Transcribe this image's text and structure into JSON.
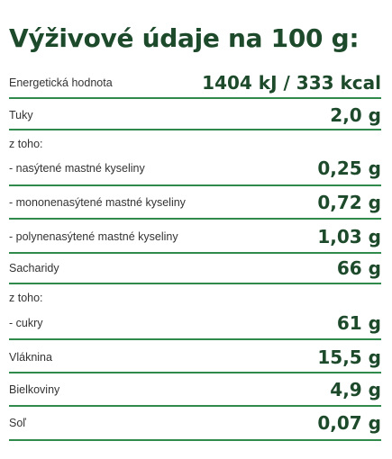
{
  "title": "Výživové údaje na 100 g:",
  "rows": [
    {
      "label": "Energetická hodnota",
      "value": "1404 kJ / 333 kcal"
    },
    {
      "label": "Tuky",
      "value": "2,0 g"
    },
    {
      "label": "z toho:"
    },
    {
      "label": "- nasýtené mastné kyseliny",
      "value": "0,25 g"
    },
    {
      "label": "- mononenasýtené mastné kyseliny",
      "value": "0,72 g"
    },
    {
      "label": "- polynenasýtené mastné kyseliny",
      "value": "1,03 g"
    },
    {
      "label": "Sacharidy",
      "value": "66 g"
    },
    {
      "label": "z toho:"
    },
    {
      "label": "- cukry",
      "value": "61 g"
    },
    {
      "label": "Vláknina",
      "value": "15,5 g"
    },
    {
      "label": "Bielkoviny",
      "value": "4,9 g"
    },
    {
      "label": "Soľ",
      "value": "0,07 g"
    }
  ]
}
